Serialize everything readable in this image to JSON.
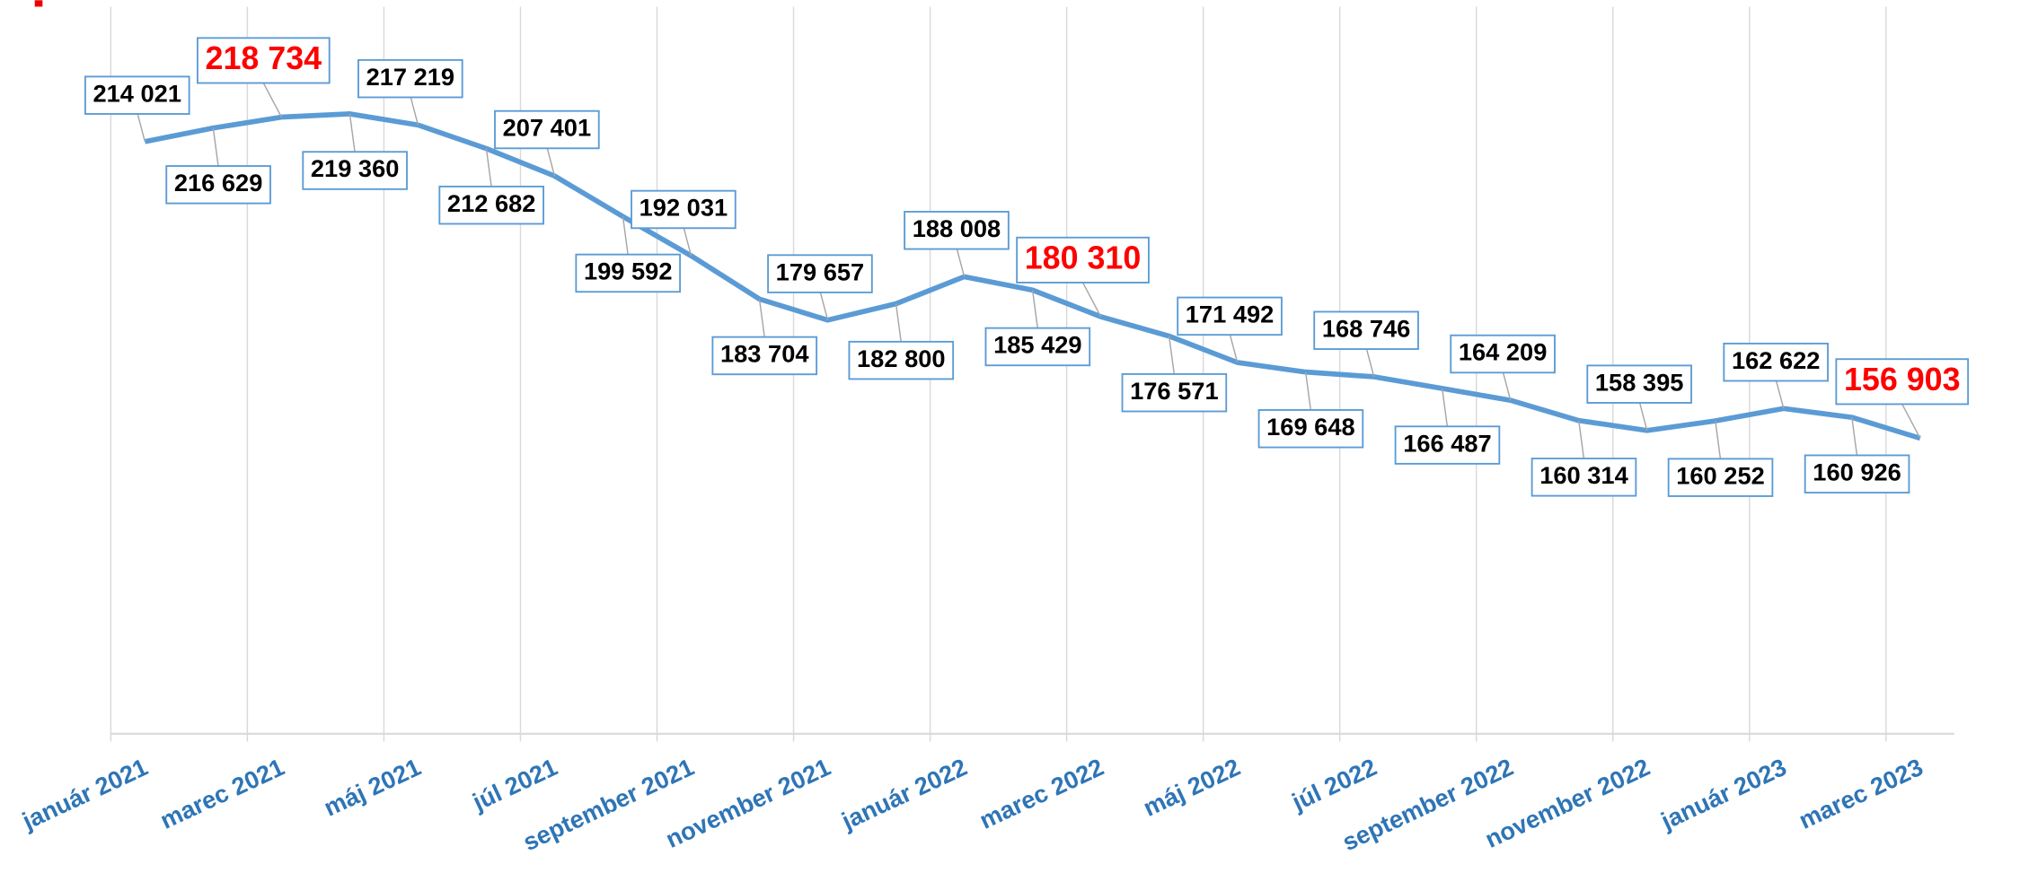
{
  "chart_data": {
    "type": "line",
    "categories": [
      "január 2021",
      null,
      "marec 2021",
      null,
      "máj 2021",
      null,
      "júl 2021",
      null,
      "september 2021",
      null,
      "november 2021",
      null,
      "január 2022",
      null,
      "marec 2022",
      null,
      "máj 2022",
      null,
      "júl 2022",
      null,
      "september 2022",
      null,
      "november 2022",
      null,
      "január 2023",
      null,
      "marec 2023"
    ],
    "series": [
      {
        "color": "#5b9bd5",
        "values": [
          214021,
          216629,
          218734,
          219360,
          217219,
          212682,
          207401,
          199592,
          192031,
          183704,
          179657,
          182800,
          188008,
          185429,
          180310,
          176571,
          171492,
          169648,
          168746,
          166487,
          164209,
          160314,
          158395,
          160252,
          162622,
          160926,
          156903
        ],
        "value_labels": [
          "214 021",
          "216 629",
          "218 734",
          "219 360",
          "217 219",
          "212 682",
          "207 401",
          "199 592",
          "192 031",
          "183 704",
          "179 657",
          "182 800",
          "188 008",
          "185 429",
          "180 310",
          "176 571",
          "171 492",
          "169 648",
          "168 746",
          "166 487",
          "164 209",
          "160 314",
          "158 395",
          "160 252",
          "162 622",
          "160 926",
          "156 903"
        ]
      }
    ],
    "ylim": [
      100000,
      240000
    ],
    "grid": true,
    "label_color": "#000000",
    "highlight_color": "#ff0000",
    "highlight": [
      2,
      14,
      26
    ],
    "axis_label_color": "#2e75b6"
  }
}
